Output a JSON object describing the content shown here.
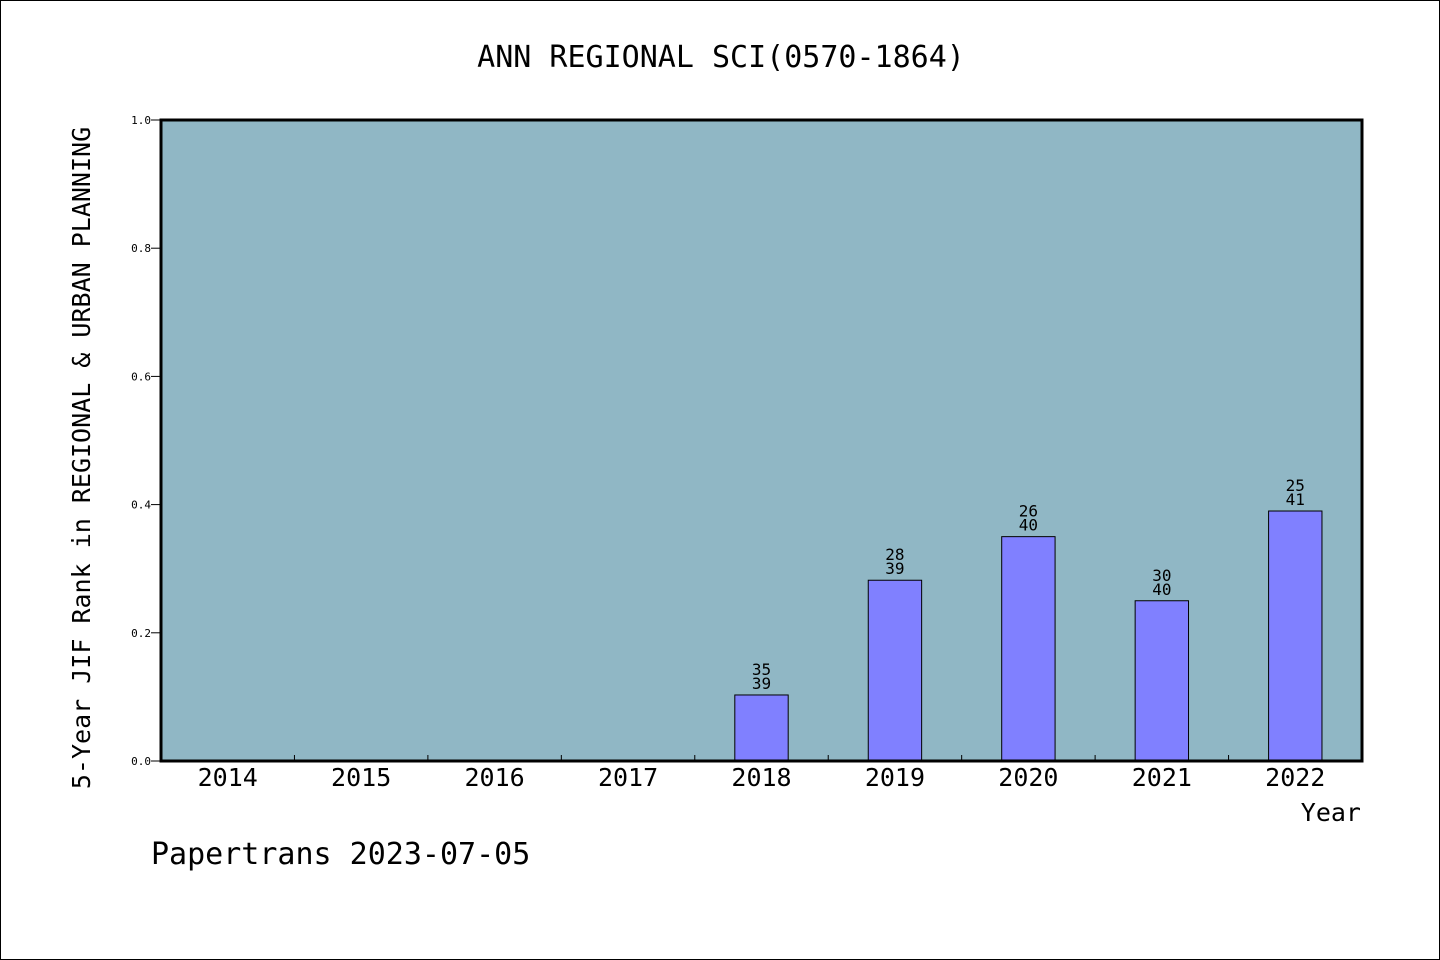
{
  "chart_data": {
    "type": "bar",
    "title": "ANN REGIONAL SCI(0570-1864)",
    "xlabel": "Year",
    "ylabel": "5-Year JIF Rank in REGIONAL & URBAN PLANNING",
    "ylim": [
      0,
      1.0
    ],
    "yticks": [
      "0.0",
      "0.2",
      "0.4",
      "0.6",
      "0.8",
      "1.0"
    ],
    "categories": [
      "2014",
      "2015",
      "2016",
      "2017",
      "2018",
      "2019",
      "2020",
      "2021",
      "2022"
    ],
    "values": [
      null,
      null,
      null,
      null,
      0.103,
      0.282,
      0.35,
      0.25,
      0.39
    ],
    "bar_labels": [
      null,
      null,
      null,
      null,
      [
        "35",
        "39"
      ],
      [
        "28",
        "39"
      ],
      [
        "26",
        "40"
      ],
      [
        "30",
        "40"
      ],
      [
        "25",
        "41"
      ]
    ],
    "grid": false,
    "colors": {
      "plot_background": "#90b7c5",
      "bar_fill": "#8080ff",
      "axis": "#000000"
    }
  },
  "footer": {
    "text": "Papertrans 2023-07-05"
  }
}
